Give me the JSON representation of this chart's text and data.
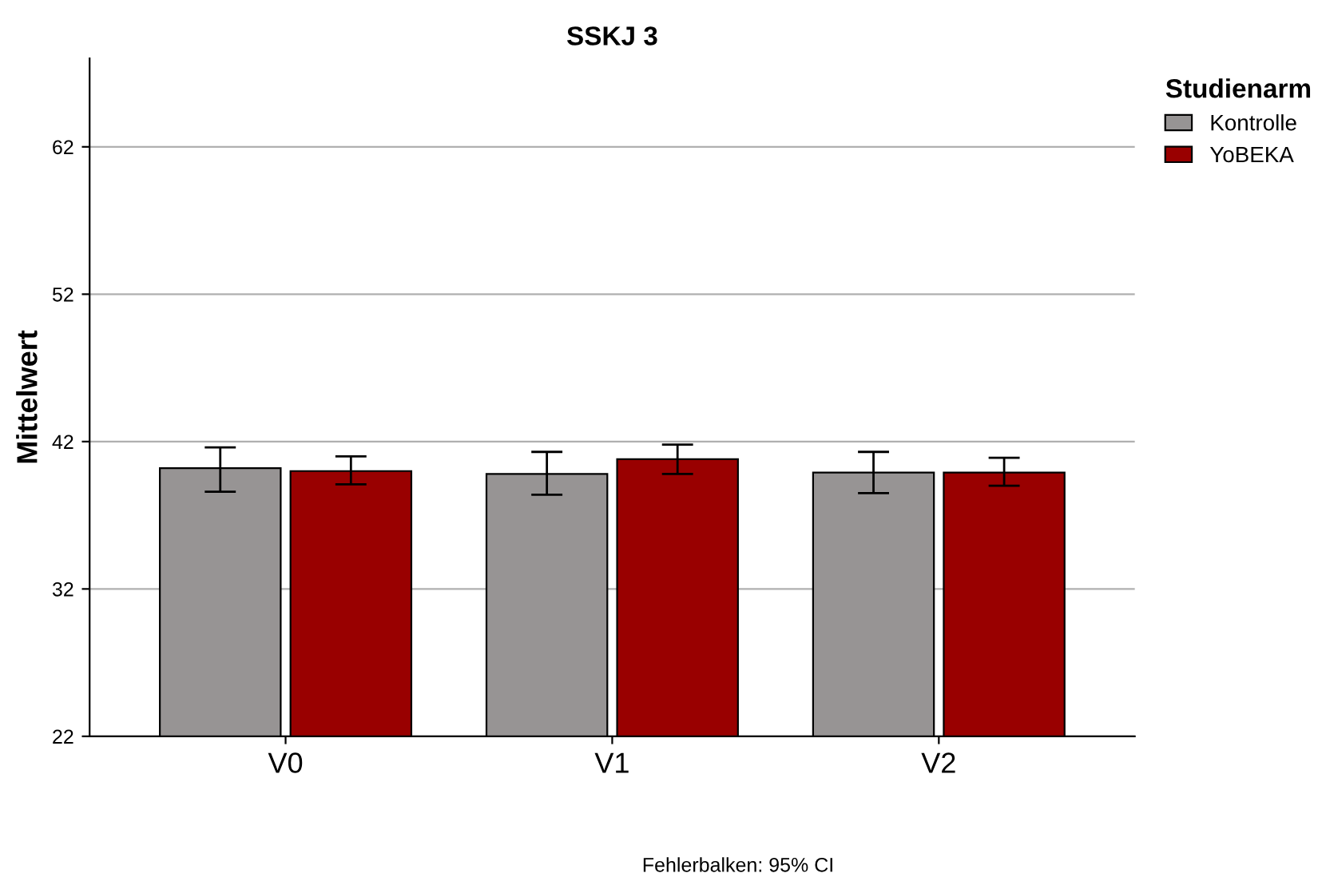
{
  "chart_data": {
    "type": "bar",
    "title": "SSKJ 3",
    "ylabel": "Mittelwert",
    "categories": [
      "V0",
      "V1",
      "V2"
    ],
    "series": [
      {
        "name": "Kontrolle",
        "color": "#979494",
        "values": [
          40.2,
          39.8,
          39.9
        ],
        "errors": [
          [
            38.6,
            41.6
          ],
          [
            38.4,
            41.3
          ],
          [
            38.5,
            41.3
          ]
        ]
      },
      {
        "name": "YoBEKA",
        "color": "#990000",
        "values": [
          40.0,
          40.8,
          39.9
        ],
        "errors": [
          [
            39.1,
            41.0
          ],
          [
            39.8,
            41.8
          ],
          [
            39.0,
            40.9
          ]
        ]
      }
    ],
    "ylim": [
      22,
      68
    ],
    "yticks": [
      22,
      32,
      42,
      52,
      62
    ],
    "grid": "y",
    "legend": "top right",
    "legend_title": "Studienarm",
    "annotations": [
      "Fehlerbalken: 95% CI"
    ]
  }
}
